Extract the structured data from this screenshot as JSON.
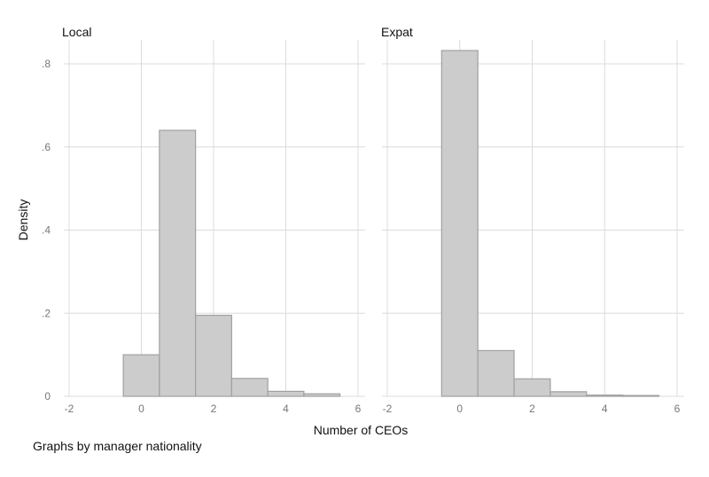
{
  "note": "Graphs by manager nationality",
  "colors": {
    "bar_fill": "#cccccc",
    "bar_stroke": "#a0a0a0",
    "grid": "#dcdcdc"
  },
  "chart_data": [
    {
      "type": "bar",
      "title": "Local",
      "xlabel": "Number of CEOs",
      "ylabel": "Density",
      "xlim": [
        -2,
        6
      ],
      "ylim": [
        0,
        0.8
      ],
      "xticks": [
        -2,
        0,
        2,
        4,
        6
      ],
      "yticks": [
        0,
        0.2,
        0.4,
        0.6,
        0.8
      ],
      "yticklabels": [
        "0",
        ".2",
        ".4",
        ".6",
        ".8"
      ],
      "grid": true,
      "bins": [
        {
          "from": -0.5,
          "to": 0.5,
          "value": 0.1
        },
        {
          "from": 0.5,
          "to": 1.5,
          "value": 0.64
        },
        {
          "from": 1.5,
          "to": 2.5,
          "value": 0.195
        },
        {
          "from": 2.5,
          "to": 3.5,
          "value": 0.043
        },
        {
          "from": 3.5,
          "to": 4.5,
          "value": 0.012
        },
        {
          "from": 4.5,
          "to": 5.5,
          "value": 0.006
        }
      ]
    },
    {
      "type": "bar",
      "title": "Expat",
      "xlabel": "Number of CEOs",
      "ylabel": "Density",
      "xlim": [
        -2,
        6
      ],
      "ylim": [
        0,
        0.8
      ],
      "xticks": [
        -2,
        0,
        2,
        4,
        6
      ],
      "yticks": [
        0,
        0.2,
        0.4,
        0.6,
        0.8
      ],
      "yticklabels": [
        "0",
        ".2",
        ".4",
        ".6",
        ".8"
      ],
      "grid": true,
      "bins": [
        {
          "from": -0.5,
          "to": 0.5,
          "value": 0.832
        },
        {
          "from": 0.5,
          "to": 1.5,
          "value": 0.11
        },
        {
          "from": 1.5,
          "to": 2.5,
          "value": 0.042
        },
        {
          "from": 2.5,
          "to": 3.5,
          "value": 0.011
        },
        {
          "from": 3.5,
          "to": 4.5,
          "value": 0.003
        },
        {
          "from": 4.5,
          "to": 5.5,
          "value": 0.002
        }
      ]
    }
  ]
}
